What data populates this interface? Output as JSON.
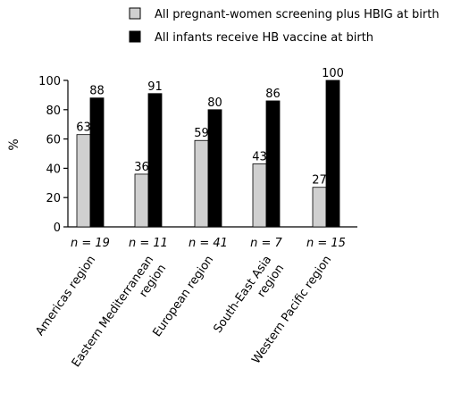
{
  "chart_data": {
    "type": "bar",
    "categories": [
      "Americas region",
      "Eastern Mediterranean region",
      "European region",
      "South-East Asia region",
      "Western Pacific region"
    ],
    "category_lines": [
      [
        "Americas region"
      ],
      [
        "Eastern Mediterranean",
        "region"
      ],
      [
        "European region"
      ],
      [
        "South-East Asia",
        "region"
      ],
      [
        "Western Pacific region"
      ]
    ],
    "n_labels": [
      "n = 19",
      "n = 11",
      "n = 41",
      "n = 7",
      "n = 15"
    ],
    "series": [
      {
        "name": "All pregnant-women screening plus HBIG at birth",
        "values": [
          63,
          36,
          59,
          43,
          27
        ],
        "color": "#d0d0d0"
      },
      {
        "name": "All infants receive HB vaccine at birth",
        "values": [
          88,
          91,
          80,
          86,
          100
        ],
        "color": "#000000"
      }
    ],
    "ylabel": "%",
    "ylim": [
      0,
      100
    ],
    "yticks": [
      0,
      20,
      40,
      60,
      80,
      100
    ],
    "legend_position": "top",
    "grid": false
  }
}
